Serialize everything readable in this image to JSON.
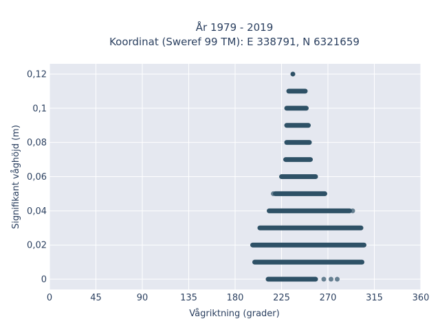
{
  "chart_data": {
    "type": "scatter",
    "title_line1": "År 1979 - 2019",
    "title_line2": "Koordinat (Sweref 99 TM): E 338791, N 6321659",
    "xlabel": "Vågriktning (grader)",
    "ylabel": "Signifikant våghöjd (m)",
    "xlim": [
      0,
      360
    ],
    "ylim": [
      -0.006,
      0.126
    ],
    "x_ticks": [
      0,
      45,
      90,
      135,
      180,
      225,
      270,
      315,
      360
    ],
    "x_tick_labels": [
      "0",
      "45",
      "90",
      "135",
      "180",
      "225",
      "270",
      "315",
      "360"
    ],
    "y_ticks": [
      0,
      0.02,
      0.04,
      0.06,
      0.08,
      0.1,
      0.12
    ],
    "y_tick_labels": [
      "0",
      "0,02",
      "0,04",
      "0,06",
      "0,08",
      "0,1",
      "0,12"
    ],
    "grid": true,
    "marker_color": "#2e5166",
    "background_color": "#e5e8f0",
    "rows": [
      {
        "y": 0,
        "x_min": 212,
        "x_max": 258,
        "outliers": [
          266,
          273,
          279
        ]
      },
      {
        "y": 0.01,
        "x_min": 199,
        "x_max": 303,
        "outliers": []
      },
      {
        "y": 0.02,
        "x_min": 197,
        "x_max": 305,
        "outliers": []
      },
      {
        "y": 0.03,
        "x_min": 204,
        "x_max": 302,
        "outliers": []
      },
      {
        "y": 0.04,
        "x_min": 213,
        "x_max": 291,
        "outliers": [
          294
        ]
      },
      {
        "y": 0.05,
        "x_min": 219,
        "x_max": 267,
        "outliers": [
          217
        ]
      },
      {
        "y": 0.06,
        "x_min": 225,
        "x_max": 258,
        "outliers": []
      },
      {
        "y": 0.07,
        "x_min": 229,
        "x_max": 253,
        "outliers": []
      },
      {
        "y": 0.08,
        "x_min": 230,
        "x_max": 252,
        "outliers": []
      },
      {
        "y": 0.09,
        "x_min": 230,
        "x_max": 251,
        "outliers": []
      },
      {
        "y": 0.1,
        "x_min": 230,
        "x_max": 249,
        "outliers": []
      },
      {
        "y": 0.11,
        "x_min": 232,
        "x_max": 248,
        "outliers": []
      },
      {
        "y": 0.12,
        "x_min": 236,
        "x_max": 236,
        "outliers": []
      }
    ]
  }
}
